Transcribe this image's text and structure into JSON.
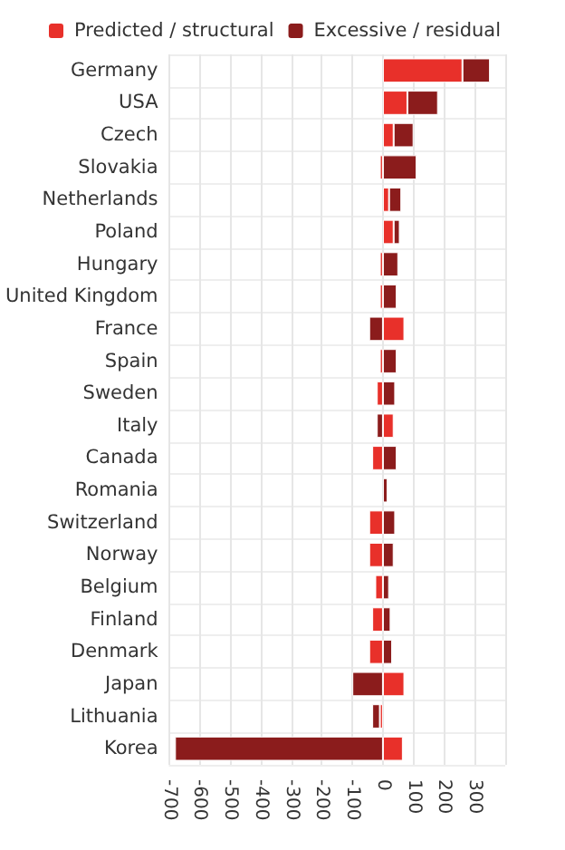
{
  "chart_data": {
    "type": "bar",
    "orientation": "horizontal",
    "stacked": true,
    "categories": [
      "Germany",
      "USA",
      "Czech",
      "Slovakia",
      "Netherlands",
      "Poland",
      "Hungary",
      "United Kingdom",
      "France",
      "Spain",
      "Sweden",
      "Italy",
      "Canada",
      "Romania",
      "Switzerland",
      "Norway",
      "Belgium",
      "Finland",
      "Denmark",
      "Japan",
      "Lithuania",
      "Korea"
    ],
    "series": [
      {
        "name": "Predicted / structural",
        "color": "#e8302a",
        "values": [
          260,
          80,
          35,
          -10,
          20,
          35,
          -10,
          -10,
          70,
          -10,
          -20,
          35,
          -35,
          null,
          -45,
          -45,
          -25,
          -35,
          -45,
          70,
          -10,
          65
        ]
      },
      {
        "name": "Excessive / residual",
        "color": "#8b1c1c",
        "values": [
          90,
          100,
          65,
          110,
          40,
          20,
          50,
          45,
          -45,
          45,
          40,
          -20,
          45,
          15,
          40,
          35,
          20,
          25,
          30,
          -100,
          -25,
          -680
        ]
      }
    ],
    "xlim": [
      -700,
      400
    ],
    "xticks": [
      -700,
      -600,
      -500,
      -400,
      -300,
      -200,
      -100,
      0,
      100,
      200,
      300,
      {
        "value": 400,
        "label": null
      }
    ],
    "grid": true,
    "legend": "top left"
  }
}
